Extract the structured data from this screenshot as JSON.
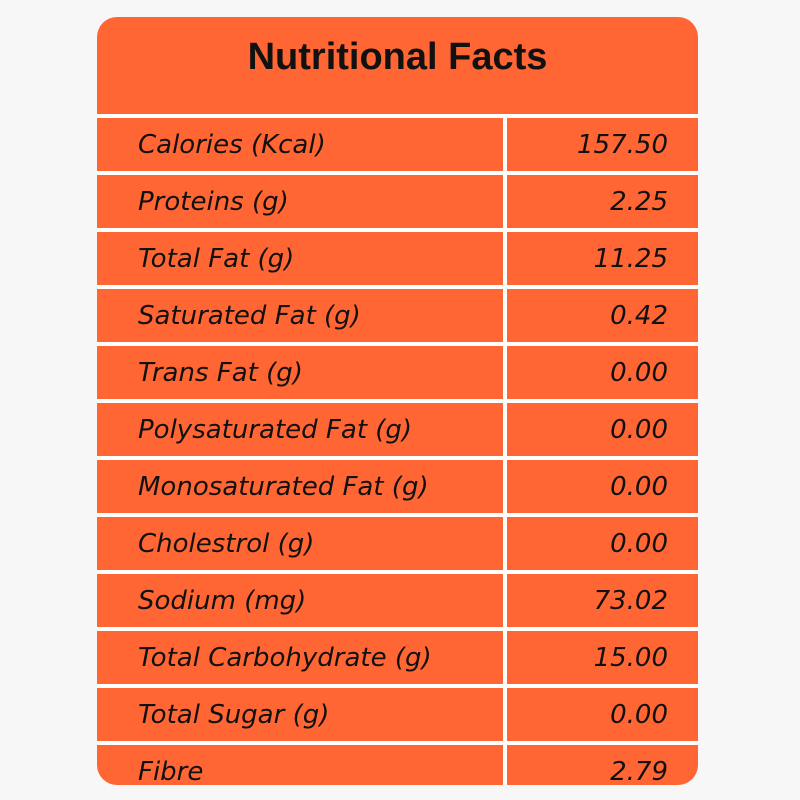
{
  "panel": {
    "title": "Nutritional Facts",
    "background_color": "#ff6633",
    "divider_color": "#ffffff"
  },
  "rows": [
    {
      "label": "Calories (Kcal)",
      "value": "157.50"
    },
    {
      "label": "Proteins (g)",
      "value": "2.25"
    },
    {
      "label": "Total Fat (g)",
      "value": "11.25"
    },
    {
      "label": "Saturated Fat (g)",
      "value": "0.42"
    },
    {
      "label": "Trans Fat (g)",
      "value": "0.00"
    },
    {
      "label": "Polysaturated Fat (g)",
      "value": "0.00"
    },
    {
      "label": "Monosaturated Fat (g)",
      "value": "0.00"
    },
    {
      "label": "Cholestrol (g)",
      "value": "0.00"
    },
    {
      "label": "Sodium (mg)",
      "value": "73.02"
    },
    {
      "label": "Total Carbohydrate (g)",
      "value": "15.00"
    },
    {
      "label": "Total Sugar (g)",
      "value": "0.00"
    },
    {
      "label": "Fibre",
      "value": "2.79"
    }
  ]
}
